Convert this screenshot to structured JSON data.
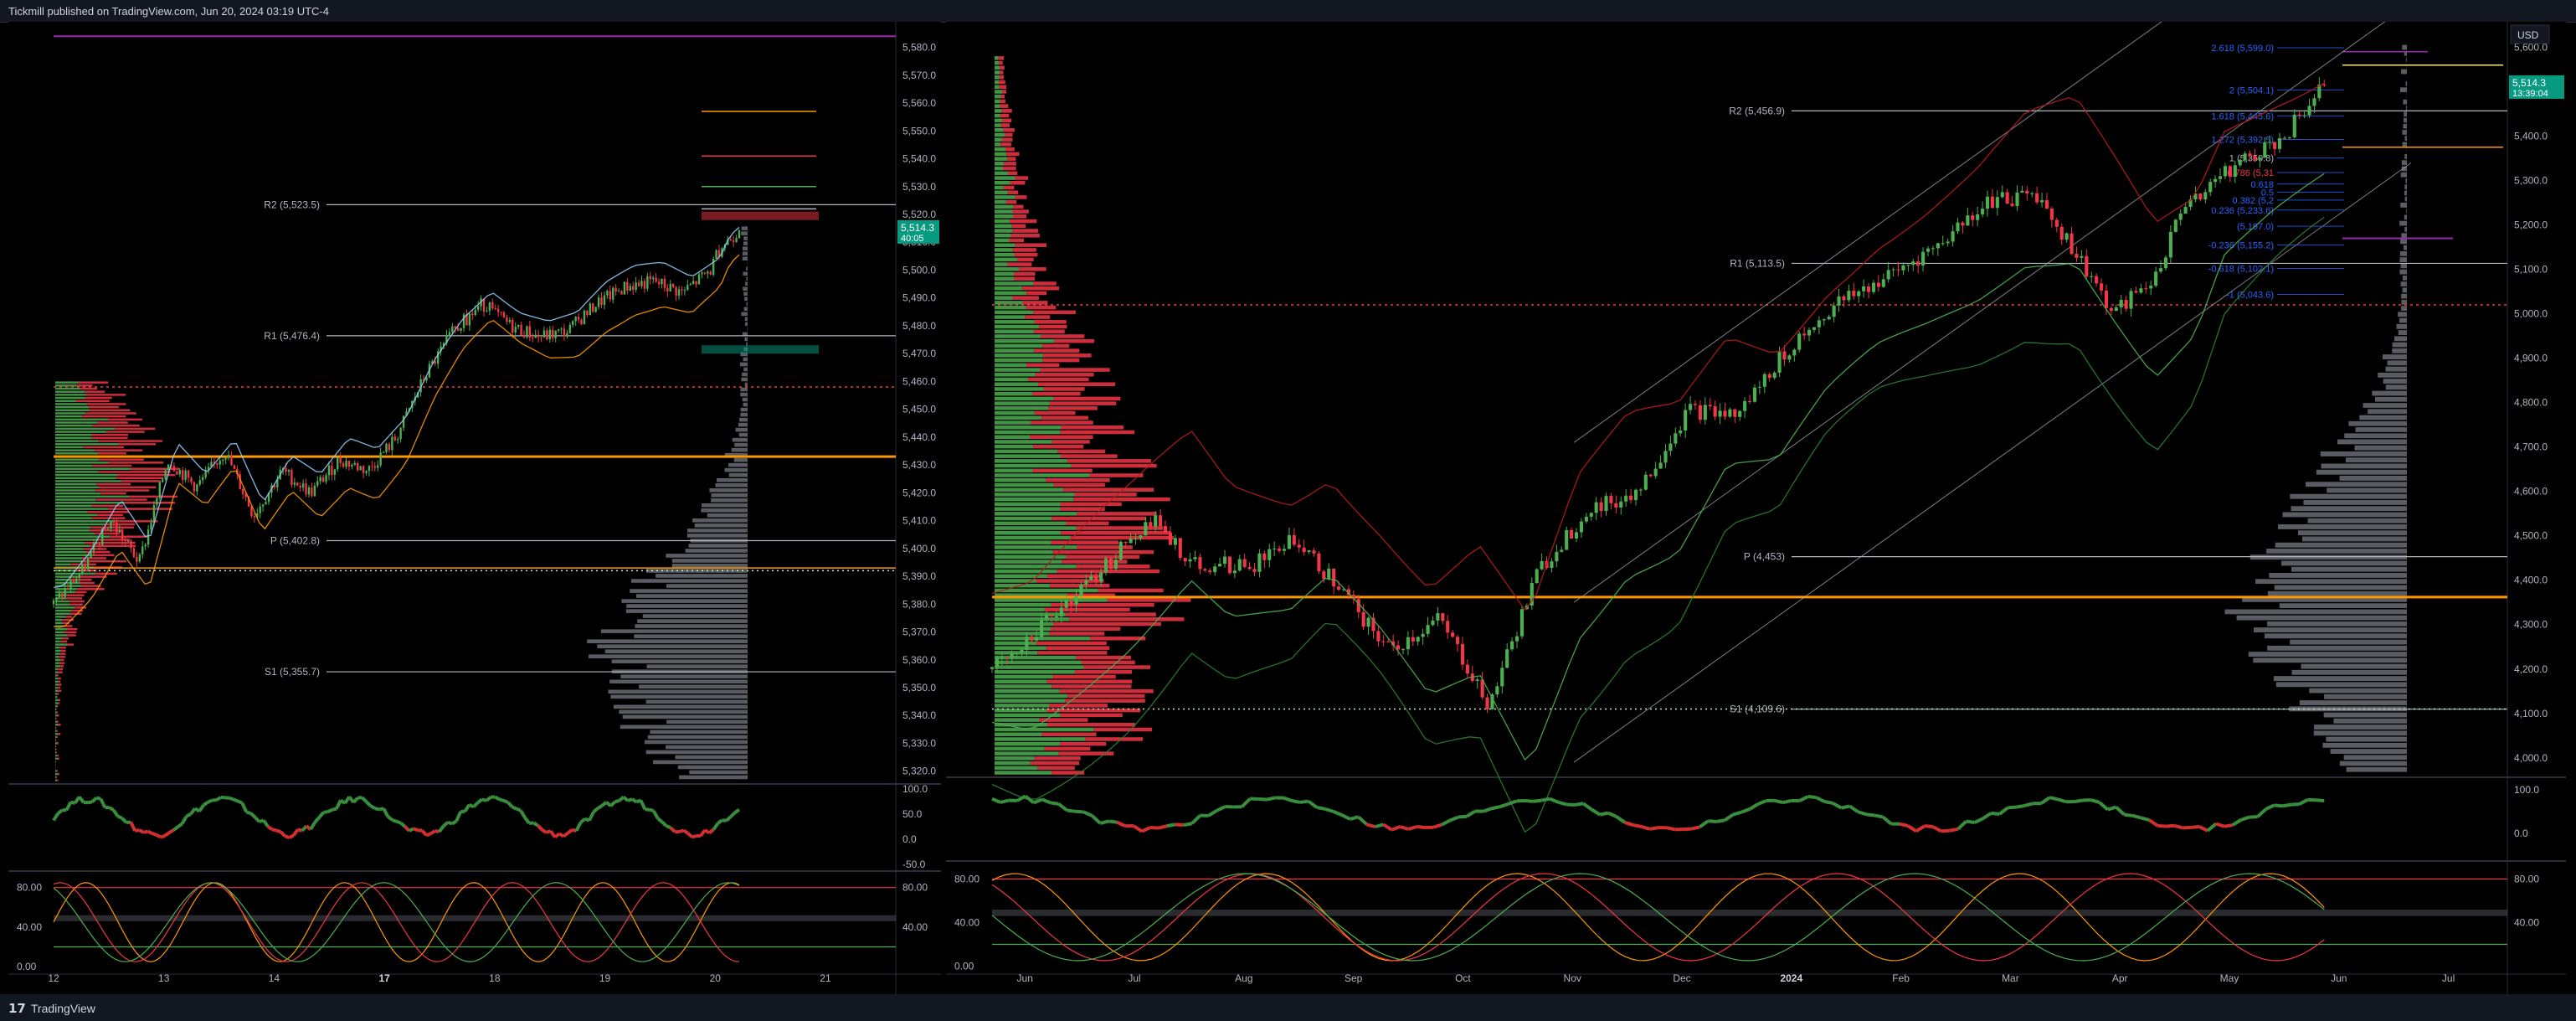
{
  "header": {
    "publish_note": "Tickmill published on TradingView.com, Jun 20, 2024 03:19 UTC-4"
  },
  "footer": {
    "brand": "TradingView",
    "brand_icon": "tv-logo-icon"
  },
  "colors": {
    "background": "#000000",
    "up": "#4caf50",
    "down": "#f23645",
    "pivot": "#b2b5be",
    "poc": "#ff9800",
    "last_price": "#089981",
    "fib": "#2962ff",
    "purple": "#9c27b0"
  },
  "chart_data": [
    {
      "type": "candlestick",
      "panel": "left",
      "timeframe_note": "intraday",
      "x_ticks": [
        "12",
        "13",
        "14",
        "17",
        "18",
        "19",
        "20",
        "21"
      ],
      "y_ticks": [
        "5,580.0",
        "5,570.0",
        "5,560.0",
        "5,550.0",
        "5,540.0",
        "5,530.0",
        "5,520.0",
        "5,510.0",
        "5,500.0",
        "5,490.0",
        "5,480.0",
        "5,470.0",
        "5,460.0",
        "5,450.0",
        "5,440.0",
        "5,430.0",
        "5,420.0",
        "5,410.0",
        "5,400.0",
        "5,390.0",
        "5,380.0",
        "5,370.0",
        "5,360.0",
        "5,350.0",
        "5,340.0",
        "5,330.0",
        "5,320.0"
      ],
      "ylim": [
        5316,
        5588
      ],
      "pivot_levels": [
        {
          "label": "R2 (5,523.5)",
          "value": 5523.5
        },
        {
          "label": "R1 (5,476.4)",
          "value": 5476.4
        },
        {
          "label": "P (5,402.8)",
          "value": 5402.8
        },
        {
          "label": "S1 (5,355.7)",
          "value": 5355.7
        }
      ],
      "last_price": {
        "value": "5,514.3",
        "countdown": "40:05"
      },
      "price_path": [
        [
          0,
          5380
        ],
        [
          0.3,
          5392
        ],
        [
          0.6,
          5410
        ],
        [
          0.9,
          5395
        ],
        [
          1.2,
          5432
        ],
        [
          1.5,
          5422
        ],
        [
          1.8,
          5435
        ],
        [
          2.1,
          5412
        ],
        [
          2.4,
          5428
        ],
        [
          2.7,
          5420
        ],
        [
          3.0,
          5432
        ],
        [
          3.3,
          5428
        ],
        [
          3.6,
          5440
        ],
        [
          3.9,
          5462
        ],
        [
          4.2,
          5478
        ],
        [
          4.5,
          5488
        ],
        [
          4.8,
          5480
        ],
        [
          5.1,
          5476
        ],
        [
          5.4,
          5478
        ],
        [
          5.7,
          5488
        ],
        [
          6.0,
          5494
        ],
        [
          6.3,
          5496
        ],
        [
          6.6,
          5492
        ],
        [
          6.9,
          5500
        ],
        [
          7.0,
          5508
        ],
        [
          7.2,
          5514.3
        ]
      ],
      "osc1": {
        "ylim": [
          -60,
          110
        ],
        "y_ticks": [
          "100.0",
          "50.0",
          "0.0",
          "-50.0"
        ]
      },
      "osc2": {
        "ylim": [
          -5,
          95
        ],
        "y_ticks": [
          "80.00",
          "40.00",
          "0.00"
        ],
        "right_ticks": [
          "80.00",
          "40.00"
        ]
      }
    },
    {
      "type": "candlestick",
      "panel": "right",
      "timeframe_note": "daily",
      "currency": "USD",
      "x_ticks": [
        "Jun",
        "Jul",
        "Aug",
        "Sep",
        "Oct",
        "Nov",
        "Dec",
        "2024",
        "Feb",
        "Mar",
        "Apr",
        "May",
        "Jun",
        "Jul"
      ],
      "y_ticks": [
        "5,600.0",
        "5,500.0",
        "5,400.0",
        "5,300.0",
        "5,200.0",
        "5,100.0",
        "5,000.0",
        "4,900.0",
        "4,800.0",
        "4,700.0",
        "4,600.0",
        "4,500.0",
        "4,400.0",
        "4,300.0",
        "4,200.0",
        "4,100.0",
        "4,000.0"
      ],
      "ylim": [
        3960,
        5650
      ],
      "pivot_levels": [
        {
          "label": "R2 (5,456.9)",
          "value": 5456.9
        },
        {
          "label": "R1 (5,113.5)",
          "value": 5113.5
        },
        {
          "label": "P (4,453)",
          "value": 4453
        },
        {
          "label": "S1 (4,109.6)",
          "value": 4109.6
        }
      ],
      "fib_levels": [
        {
          "label": "2.618 (5,599.0)",
          "value": 5599.0
        },
        {
          "label": "2 (5,504.1)",
          "value": 5504.1
        },
        {
          "label": "1.618 (5,445.6)",
          "value": 5445.6
        },
        {
          "label": "1.272 (5,392.5)",
          "value": 5392.5
        },
        {
          "label": "1 (5,350.8)",
          "value": 5350.8
        },
        {
          "label": "0.786 (5,31",
          "value": 5318
        },
        {
          "label": "0.618",
          "value": 5292
        },
        {
          "label": "0.5",
          "value": 5274
        },
        {
          "label": "0.382 (5,2",
          "value": 5256
        },
        {
          "label": "0.236 (5,233.6)",
          "value": 5233.6
        },
        {
          "label": "(5,197.0)",
          "value": 5197.0
        },
        {
          "label": "-0.236 (5,155.2)",
          "value": 5155.2
        },
        {
          "label": "-0.618 (5,102.1)",
          "value": 5102.1
        },
        {
          "label": "-1 (5,043.6)",
          "value": 5043.6
        }
      ],
      "last_price": {
        "value": "5,514.3",
        "countdown": "13:39:04"
      },
      "price_path": [
        [
          0,
          4200
        ],
        [
          1,
          4400
        ],
        [
          1.6,
          4540
        ],
        [
          2,
          4440
        ],
        [
          2.6,
          4430
        ],
        [
          3,
          4500
        ],
        [
          3.5,
          4380
        ],
        [
          4,
          4240
        ],
        [
          4.5,
          4310
        ],
        [
          5,
          4120
        ],
        [
          5.5,
          4420
        ],
        [
          6,
          4560
        ],
        [
          6.5,
          4600
        ],
        [
          7,
          4780
        ],
        [
          7.5,
          4770
        ],
        [
          8,
          4920
        ],
        [
          8.5,
          5020
        ],
        [
          9,
          5080
        ],
        [
          9.5,
          5150
        ],
        [
          10,
          5250
        ],
        [
          10.5,
          5270
        ],
        [
          11,
          5100
        ],
        [
          11.3,
          5000
        ],
        [
          11.7,
          5080
        ],
        [
          12,
          5250
        ],
        [
          12.5,
          5330
        ],
        [
          13,
          5400
        ],
        [
          13.4,
          5514.3
        ]
      ],
      "osc1": {
        "ylim": [
          -60,
          110
        ],
        "y_ticks": [
          "100.0",
          "0.0"
        ]
      },
      "osc2": {
        "ylim": [
          -5,
          95
        ],
        "y_ticks": [
          "80.00",
          "40.00",
          "0.00"
        ],
        "right_ticks": [
          "80.00",
          "40.00"
        ]
      }
    }
  ]
}
